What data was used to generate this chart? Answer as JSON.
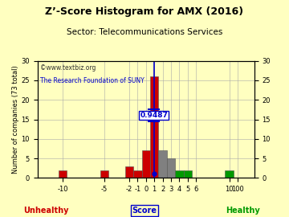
{
  "title": "Z’-Score Histogram for AMX (2016)",
  "sector": "Sector: Telecommunications Services",
  "watermark1": "©www.textbiz.org",
  "watermark2": "The Research Foundation of SUNY",
  "score_label": "0.9487",
  "score_value": 0.9487,
  "bar_positions": [
    -10,
    -5,
    -2,
    -1,
    0,
    1,
    2,
    3,
    4,
    5,
    10
  ],
  "bar_heights": [
    2,
    2,
    3,
    2,
    7,
    26,
    7,
    5,
    2,
    2,
    2
  ],
  "bar_colors": [
    "#cc0000",
    "#cc0000",
    "#cc0000",
    "#cc0000",
    "#cc0000",
    "#cc0000",
    "#808080",
    "#808080",
    "#009900",
    "#009900",
    "#009900"
  ],
  "bar_width": 1.0,
  "ylim": [
    0,
    30
  ],
  "xtick_positions": [
    -10,
    -5,
    -2,
    -1,
    0,
    1,
    2,
    3,
    4,
    5,
    6,
    10,
    11
  ],
  "xtick_labels": [
    "-10",
    "-5",
    "-2",
    "-1",
    "0",
    "1",
    "2",
    "3",
    "4",
    "5",
    "6",
    "10",
    "100"
  ],
  "yticks": [
    0,
    5,
    10,
    15,
    20,
    25,
    30
  ],
  "xlim": [
    -13,
    13
  ],
  "bg_color": "#ffffc0",
  "grid_color": "#aaaaaa",
  "title_fontsize": 9,
  "sector_fontsize": 7.5,
  "tick_fontsize": 6,
  "ylabel_fontsize": 6,
  "watermark1_color": "#333333",
  "watermark2_color": "#0000cc",
  "score_line_color": "#0000cc",
  "unhealthy_color": "#cc0000",
  "healthy_color": "#009900",
  "score_text_color": "#0000cc"
}
